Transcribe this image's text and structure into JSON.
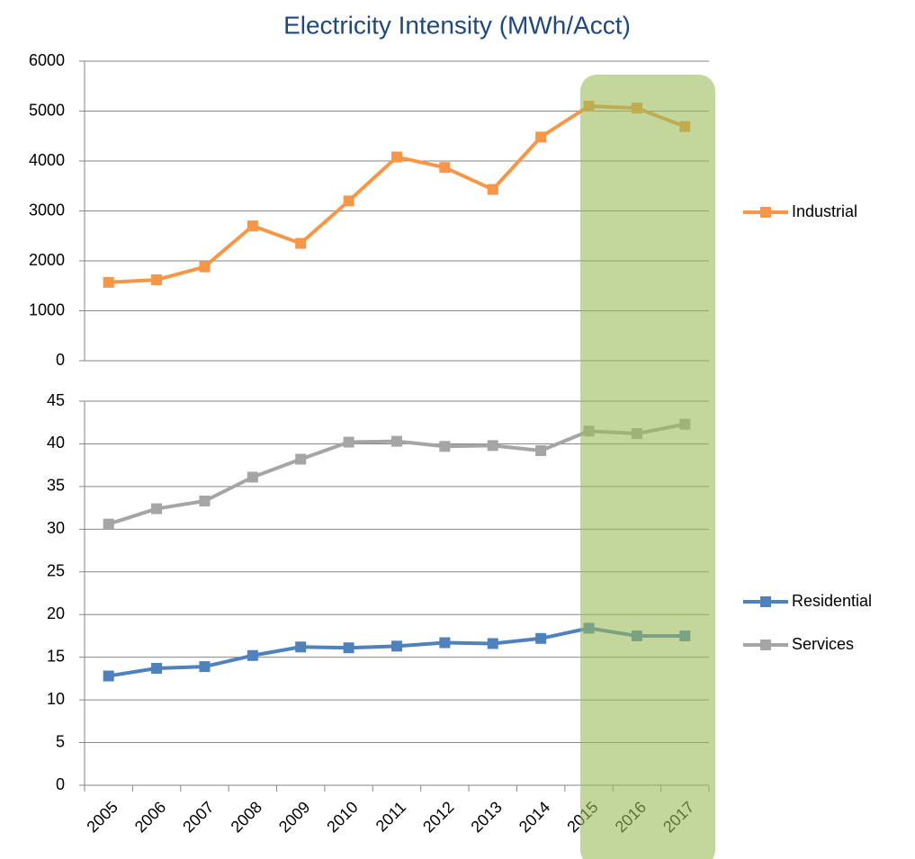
{
  "chart_data": [
    {
      "type": "line",
      "title": "Electricity Intensity (MWh/Acct)",
      "series": [
        {
          "name": "Industrial",
          "color": "#f79646",
          "values": [
            1570,
            1620,
            1880,
            2700,
            2350,
            3200,
            4080,
            3870,
            3430,
            4480,
            5100,
            5060,
            4690
          ]
        }
      ],
      "ylim": [
        0,
        6000
      ],
      "yticks": [
        0,
        1000,
        2000,
        3000,
        4000,
        5000,
        6000
      ],
      "grid": true,
      "legend": "right"
    },
    {
      "type": "line",
      "categories": [
        "2005",
        "2006",
        "2007",
        "2008",
        "2009",
        "2010",
        "2011",
        "2012",
        "2013",
        "2014",
        "2015",
        "2016",
        "2017"
      ],
      "series": [
        {
          "name": "Residential",
          "color": "#4f81bd",
          "values": [
            12.8,
            13.7,
            13.9,
            15.2,
            16.2,
            16.1,
            16.3,
            16.7,
            16.6,
            17.2,
            18.4,
            17.5,
            17.5
          ]
        },
        {
          "name": "Services",
          "color": "#a5a5a5",
          "values": [
            30.6,
            32.4,
            33.3,
            36.1,
            38.2,
            40.2,
            40.3,
            39.7,
            39.8,
            39.2,
            41.5,
            41.2,
            42.3
          ]
        }
      ],
      "ylim": [
        0,
        45
      ],
      "yticks": [
        0,
        5,
        10,
        15,
        20,
        25,
        30,
        35,
        40,
        45
      ],
      "grid": true,
      "legend": "right"
    }
  ]
}
